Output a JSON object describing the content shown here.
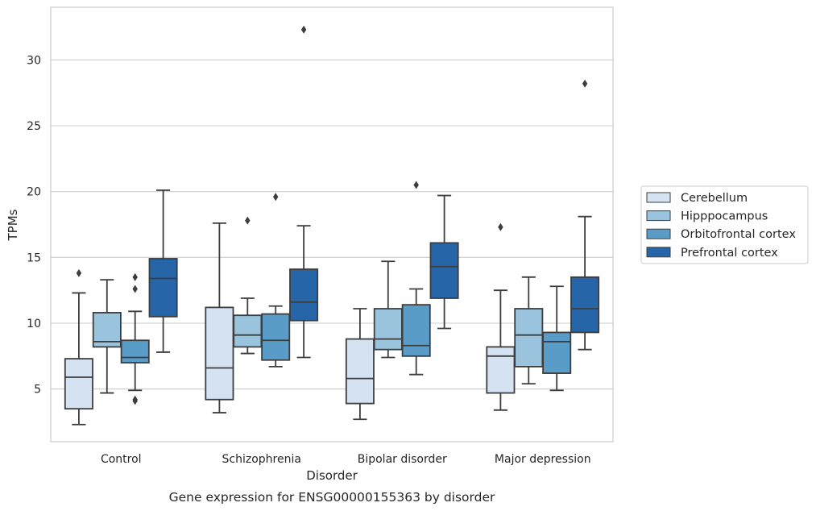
{
  "chart_data": {
    "type": "box",
    "title": "Gene expression for ENSG00000155363 by disorder",
    "xlabel": "Disorder",
    "ylabel": "TPMs",
    "ylim": [
      1.0,
      34.0
    ],
    "yticks": [
      5,
      10,
      15,
      20,
      25,
      30
    ],
    "grid": true,
    "legend_position": "right",
    "categories": [
      "Control",
      "Schizophrenia",
      "Bipolar disorder",
      "Major depression"
    ],
    "series": [
      {
        "name": "Cerebellum",
        "color": "#d4e2f2",
        "boxes": [
          {
            "whislo": 2.3,
            "q1": 3.5,
            "med": 5.9,
            "q3": 7.3,
            "whishi": 12.3,
            "fliers": [
              13.8
            ]
          },
          {
            "whislo": 3.2,
            "q1": 4.2,
            "med": 6.6,
            "q3": 11.2,
            "whishi": 17.6,
            "fliers": []
          },
          {
            "whislo": 2.7,
            "q1": 3.9,
            "med": 5.8,
            "q3": 8.8,
            "whishi": 11.1,
            "fliers": []
          },
          {
            "whislo": 3.4,
            "q1": 4.7,
            "med": 7.5,
            "q3": 8.2,
            "whishi": 12.5,
            "fliers": [
              17.3
            ]
          }
        ]
      },
      {
        "name": "Hipppocampus",
        "color": "#9ac4dd",
        "boxes": [
          {
            "whislo": 4.7,
            "q1": 8.2,
            "med": 8.6,
            "q3": 10.8,
            "whishi": 13.3,
            "fliers": []
          },
          {
            "whislo": 7.7,
            "q1": 8.2,
            "med": 9.1,
            "q3": 10.6,
            "whishi": 11.9,
            "fliers": [
              17.8
            ]
          },
          {
            "whislo": 7.4,
            "q1": 8.0,
            "med": 8.8,
            "q3": 11.1,
            "whishi": 14.7,
            "fliers": []
          },
          {
            "whislo": 5.4,
            "q1": 6.7,
            "med": 9.1,
            "q3": 11.1,
            "whishi": 13.5,
            "fliers": []
          }
        ]
      },
      {
        "name": "Orbitofrontal cortex",
        "color": "#5a9cc8",
        "boxes": [
          {
            "whislo": 4.9,
            "q1": 7.0,
            "med": 7.4,
            "q3": 8.7,
            "whishi": 10.9,
            "fliers": [
              4.1,
              4.2,
              12.6,
              13.5
            ]
          },
          {
            "whislo": 6.7,
            "q1": 7.2,
            "med": 8.7,
            "q3": 10.7,
            "whishi": 11.3,
            "fliers": [
              19.6
            ]
          },
          {
            "whislo": 6.1,
            "q1": 7.5,
            "med": 8.3,
            "q3": 11.4,
            "whishi": 12.6,
            "fliers": [
              20.5
            ]
          },
          {
            "whislo": 4.9,
            "q1": 6.2,
            "med": 8.6,
            "q3": 9.3,
            "whishi": 12.8,
            "fliers": []
          }
        ]
      },
      {
        "name": "Prefrontal cortex",
        "color": "#2666a8",
        "boxes": [
          {
            "whislo": 7.8,
            "q1": 10.5,
            "med": 13.4,
            "q3": 14.9,
            "whishi": 20.1,
            "fliers": []
          },
          {
            "whislo": 7.4,
            "q1": 10.2,
            "med": 11.6,
            "q3": 14.1,
            "whishi": 17.4,
            "fliers": [
              32.3
            ]
          },
          {
            "whislo": 9.6,
            "q1": 11.9,
            "med": 14.3,
            "q3": 16.1,
            "whishi": 19.7,
            "fliers": []
          },
          {
            "whislo": 8.0,
            "q1": 9.3,
            "med": 11.1,
            "q3": 13.5,
            "whishi": 18.1,
            "fliers": [
              28.2
            ]
          }
        ]
      }
    ]
  }
}
